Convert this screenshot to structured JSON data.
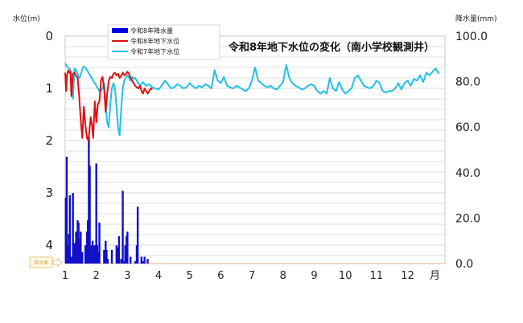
{
  "title": "令和8年地下水位の変化（南小学校観測井）",
  "left_axis": {
    "label": "水位(m)",
    "ticks": [
      "0",
      "1",
      "2",
      "3",
      "4"
    ]
  },
  "right_axis": {
    "label": "降水量(mm)",
    "ticks": [
      "100.0",
      "80.0",
      "60.0",
      "40.0",
      "20.0",
      "0.0"
    ]
  },
  "x_axis": {
    "ticks": [
      "1",
      "2",
      "3",
      "4",
      "5",
      "6",
      "7",
      "8",
      "9",
      "10",
      "11",
      "12"
    ],
    "unit": "月"
  },
  "drought_marker": {
    "label": "渇水面"
  },
  "legend": [
    {
      "label": "令和8年降水量",
      "color": "#0000e0",
      "kind": "bar"
    },
    {
      "label": "令和8年地下水位",
      "color": "#e01010",
      "kind": "line"
    },
    {
      "label": "令和7年地下水位",
      "color": "#22c0e8",
      "kind": "line"
    }
  ],
  "colors": {
    "rain": "#1010c8",
    "level_r8": "#e01010",
    "level_r7": "#22c0e8",
    "grid": "#d8d8d8",
    "drought_line": "#e8c8b8"
  },
  "chart_data": {
    "type": "line",
    "title": "令和8年地下水位の変化（南小学校観測井）",
    "xlabel": "月",
    "ylabel": "水位(m)",
    "ylabel_right": "降水量(mm)",
    "ylim": [
      4.35,
      0
    ],
    "ylim_right": [
      0,
      100
    ],
    "x_range_months": [
      1,
      13
    ],
    "grid": true,
    "legend_position": "top-left-inside",
    "series": [
      {
        "name": "令和7年地下水位",
        "axis": "left",
        "x": [
          1.0,
          1.05,
          1.1,
          1.15,
          1.2,
          1.25,
          1.3,
          1.35,
          1.4,
          1.45,
          1.5,
          1.55,
          1.6,
          1.65,
          1.7,
          1.75,
          1.8,
          1.85,
          1.9,
          1.95,
          2.0,
          2.05,
          2.1,
          2.15,
          2.2,
          2.25,
          2.3,
          2.35,
          2.4,
          2.45,
          2.5,
          2.55,
          2.6,
          2.65,
          2.7,
          2.75,
          2.8,
          2.85,
          2.9,
          2.95,
          3.0,
          3.05,
          3.1,
          3.15,
          3.2,
          3.25,
          3.3,
          3.35,
          3.4,
          3.5,
          3.6,
          3.7,
          3.8,
          3.9,
          4.0,
          4.1,
          4.2,
          4.3,
          4.4,
          4.5,
          4.6,
          4.7,
          4.8,
          4.9,
          5.0,
          5.1,
          5.2,
          5.3,
          5.4,
          5.5,
          5.6,
          5.7,
          5.8,
          5.9,
          6.0,
          6.1,
          6.2,
          6.3,
          6.4,
          6.5,
          6.6,
          6.7,
          6.8,
          6.9,
          7.0,
          7.1,
          7.2,
          7.3,
          7.4,
          7.5,
          7.6,
          7.7,
          7.8,
          7.9,
          8.0,
          8.1,
          8.2,
          8.3,
          8.4,
          8.5,
          8.6,
          8.7,
          8.8,
          8.9,
          9.0,
          9.1,
          9.2,
          9.3,
          9.4,
          9.5,
          9.6,
          9.7,
          9.8,
          9.9,
          10.0,
          10.1,
          10.2,
          10.3,
          10.4,
          10.5,
          10.6,
          10.7,
          10.8,
          10.9,
          11.0,
          11.1,
          11.2,
          11.3,
          11.4,
          11.5,
          11.6,
          11.7,
          11.8,
          11.9,
          12.0,
          12.1,
          12.2,
          12.3,
          12.4,
          12.5,
          12.6,
          12.7,
          12.8,
          12.9,
          13.0
        ],
        "values": [
          0.52,
          0.58,
          0.6,
          0.63,
          0.72,
          1.2,
          0.62,
          0.65,
          0.72,
          0.8,
          0.75,
          0.62,
          0.58,
          0.6,
          0.65,
          0.7,
          0.75,
          0.8,
          0.85,
          0.9,
          0.95,
          1.0,
          1.05,
          1.05,
          1.0,
          0.9,
          1.3,
          1.65,
          1.75,
          1.3,
          1.0,
          0.9,
          1.0,
          1.35,
          1.75,
          1.9,
          1.4,
          1.0,
          0.85,
          0.8,
          0.75,
          0.8,
          0.85,
          0.78,
          0.82,
          0.8,
          0.85,
          0.9,
          0.95,
          0.88,
          0.95,
          0.92,
          0.98,
          1.0,
          1.02,
          0.95,
          0.85,
          0.92,
          1.0,
          0.98,
          0.92,
          0.95,
          1.0,
          0.98,
          0.9,
          0.96,
          1.0,
          0.95,
          0.98,
          0.92,
          0.95,
          1.0,
          0.65,
          0.85,
          0.9,
          0.78,
          0.95,
          0.98,
          1.0,
          0.95,
          0.98,
          1.02,
          1.05,
          1.0,
          0.85,
          0.6,
          0.85,
          0.9,
          0.95,
          0.98,
          0.95,
          1.0,
          1.02,
          0.95,
          0.88,
          0.55,
          0.8,
          0.9,
          0.95,
          0.98,
          1.02,
          1.0,
          0.95,
          0.92,
          0.95,
          1.05,
          1.1,
          1.05,
          1.1,
          0.8,
          1.0,
          1.05,
          0.88,
          1.02,
          1.1,
          1.05,
          1.0,
          0.8,
          0.75,
          0.85,
          0.95,
          0.98,
          1.0,
          0.95,
          0.85,
          0.9,
          1.05,
          1.08,
          1.05,
          1.05,
          1.0,
          0.9,
          1.02,
          0.9,
          0.85,
          0.95,
          0.82,
          0.85,
          0.75,
          0.88,
          0.7,
          0.75,
          0.68,
          0.62,
          0.72
        ]
      },
      {
        "name": "令和8年地下水位",
        "axis": "left",
        "x": [
          1.0,
          1.03,
          1.06,
          1.1,
          1.13,
          1.17,
          1.2,
          1.25,
          1.3,
          1.35,
          1.4,
          1.45,
          1.5,
          1.55,
          1.6,
          1.65,
          1.7,
          1.75,
          1.78,
          1.82,
          1.86,
          1.9,
          1.95,
          2.0,
          2.05,
          2.1,
          2.15,
          2.2,
          2.25,
          2.3,
          2.35,
          2.4,
          2.45,
          2.5,
          2.55,
          2.6,
          2.65,
          2.7,
          2.75,
          2.8,
          2.85,
          2.9,
          2.95,
          3.0,
          3.05,
          3.1,
          3.15,
          3.2,
          3.25,
          3.3,
          3.35,
          3.4,
          3.45,
          3.5,
          3.55,
          3.6,
          3.65,
          3.7,
          3.75,
          3.8
        ],
        "values": [
          0.7,
          1.05,
          0.75,
          0.65,
          0.7,
          0.68,
          1.15,
          0.72,
          0.7,
          0.75,
          0.8,
          1.15,
          1.6,
          1.95,
          1.35,
          1.7,
          1.95,
          2.0,
          1.8,
          1.55,
          1.7,
          1.95,
          1.25,
          1.65,
          1.3,
          1.25,
          0.85,
          0.78,
          1.0,
          1.45,
          1.1,
          0.85,
          0.78,
          0.8,
          0.72,
          0.7,
          0.75,
          0.72,
          0.8,
          0.76,
          0.7,
          0.75,
          0.73,
          0.68,
          0.72,
          0.8,
          0.85,
          0.9,
          0.95,
          0.98,
          1.0,
          0.95,
          1.05,
          1.1,
          1.0,
          1.05,
          1.1,
          1.05,
          1.0,
          1.02
        ]
      },
      {
        "name": "令和8年降水量",
        "axis": "right",
        "kind": "bar",
        "x": [
          1.02,
          1.05,
          1.08,
          1.12,
          1.15,
          1.2,
          1.25,
          1.3,
          1.35,
          1.4,
          1.43,
          1.47,
          1.5,
          1.55,
          1.65,
          1.7,
          1.73,
          1.76,
          1.79,
          1.82,
          1.85,
          1.88,
          1.92,
          1.96,
          2.0,
          2.03,
          2.06,
          2.1,
          2.25,
          2.3,
          2.33,
          2.37,
          2.5,
          2.65,
          2.7,
          2.73,
          2.8,
          2.85,
          2.9,
          2.93,
          2.97,
          3.0,
          3.1,
          3.25,
          3.3,
          3.33,
          3.45,
          3.5,
          3.55,
          3.65
        ],
        "values": [
          29,
          47,
          8,
          13,
          30,
          3,
          31,
          9,
          14,
          19,
          18,
          11,
          14,
          5,
          8,
          14,
          19,
          56,
          43,
          8,
          4,
          10,
          8,
          8,
          44,
          8,
          5,
          18,
          6,
          10,
          6,
          2,
          6,
          8,
          7,
          12,
          2,
          32,
          1,
          8,
          12,
          14,
          3,
          1,
          8,
          25,
          3,
          1,
          3,
          2
        ]
      }
    ]
  }
}
